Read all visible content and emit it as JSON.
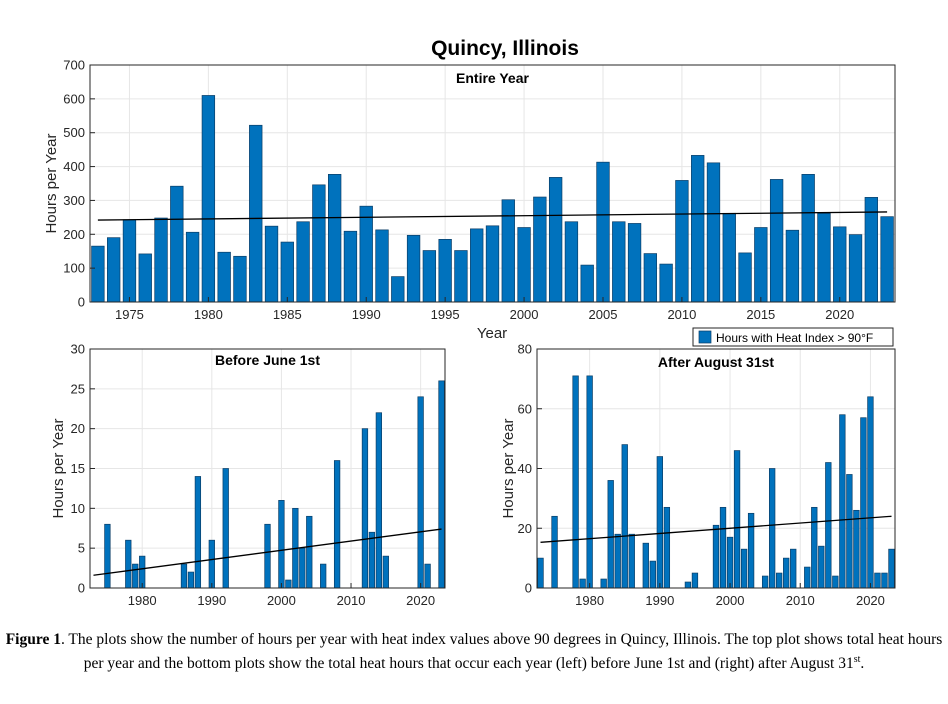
{
  "figure_title": "Quincy, Illinois",
  "caption": {
    "label": "Figure 1",
    "text_1": ". The plots show the number of hours per year with heat index values above 90 degrees in Quincy, Illinois. The top plot shows total heat hours per year and the bottom plots show the total heat hours that occur each year (left) before June 1st and (right) after August 31",
    "superscript": "st",
    "text_2": "."
  },
  "colors": {
    "bar": "#0072BD",
    "trend": "#000000",
    "grid": "#e6e6e6"
  },
  "chart_data": [
    {
      "type": "bar",
      "title": "Entire Year",
      "xlabel": "Year",
      "ylabel": "Hours per Year",
      "legend": "Hours with Heat Index > 90°F",
      "legend_position": "below-right",
      "grid": true,
      "xlim": [
        1972.5,
        2023.5
      ],
      "ylim": [
        0,
        700
      ],
      "xticks": [
        1975,
        1980,
        1985,
        1990,
        1995,
        2000,
        2005,
        2010,
        2015,
        2020
      ],
      "yticks": [
        0,
        100,
        200,
        300,
        400,
        500,
        600,
        700
      ],
      "x": [
        1973,
        1974,
        1975,
        1976,
        1977,
        1978,
        1979,
        1980,
        1981,
        1982,
        1983,
        1984,
        1985,
        1986,
        1987,
        1988,
        1989,
        1990,
        1991,
        1992,
        1993,
        1994,
        1995,
        1996,
        1997,
        1998,
        1999,
        2000,
        2001,
        2002,
        2003,
        2004,
        2005,
        2006,
        2007,
        2008,
        2009,
        2010,
        2011,
        2012,
        2013,
        2014,
        2015,
        2016,
        2017,
        2018,
        2019,
        2020,
        2021,
        2022,
        2023
      ],
      "values": [
        165,
        190,
        243,
        142,
        248,
        342,
        206,
        610,
        147,
        135,
        522,
        224,
        177,
        237,
        346,
        377,
        209,
        283,
        213,
        75,
        197,
        152,
        185,
        152,
        216,
        225,
        302,
        220,
        310,
        368,
        237,
        109,
        413,
        237,
        232,
        143,
        112,
        359,
        433,
        411,
        262,
        145,
        220,
        362,
        212,
        377,
        262,
        222,
        199,
        309,
        252
      ],
      "trend": {
        "x": [
          1973,
          2023
        ],
        "y": [
          242,
          266
        ]
      }
    },
    {
      "type": "bar",
      "title": "Before June 1st",
      "xlabel": "",
      "ylabel": "Hours per Year",
      "grid": true,
      "xlim": [
        1972.5,
        2023.5
      ],
      "ylim": [
        0,
        30
      ],
      "xticks": [
        1980,
        1990,
        2000,
        2010,
        2020
      ],
      "yticks": [
        0,
        5,
        10,
        15,
        20,
        25,
        30
      ],
      "x": [
        1973,
        1974,
        1975,
        1976,
        1977,
        1978,
        1979,
        1980,
        1981,
        1982,
        1983,
        1984,
        1985,
        1986,
        1987,
        1988,
        1989,
        1990,
        1991,
        1992,
        1993,
        1994,
        1995,
        1996,
        1997,
        1998,
        1999,
        2000,
        2001,
        2002,
        2003,
        2004,
        2005,
        2006,
        2007,
        2008,
        2009,
        2010,
        2011,
        2012,
        2013,
        2014,
        2015,
        2016,
        2017,
        2018,
        2019,
        2020,
        2021,
        2022,
        2023
      ],
      "values": [
        0,
        0,
        8,
        0,
        0,
        6,
        3,
        4,
        0,
        0,
        0,
        0,
        0,
        3,
        2,
        14,
        0,
        6,
        0,
        15,
        0,
        0,
        0,
        0,
        0,
        8,
        0,
        11,
        1,
        10,
        5,
        9,
        0,
        3,
        0,
        16,
        0,
        0,
        0,
        20,
        7,
        22,
        4,
        0,
        0,
        0,
        0,
        24,
        3,
        0,
        26
      ],
      "trend": {
        "x": [
          1973,
          2023
        ],
        "y": [
          1.6,
          7.4
        ]
      }
    },
    {
      "type": "bar",
      "title": "After August 31st",
      "xlabel": "",
      "ylabel": "Hours per Year",
      "grid": true,
      "xlim": [
        1972.5,
        2023.5
      ],
      "ylim": [
        0,
        80
      ],
      "xticks": [
        1980,
        1990,
        2000,
        2010,
        2020
      ],
      "yticks": [
        0,
        20,
        40,
        60,
        80
      ],
      "x": [
        1973,
        1974,
        1975,
        1976,
        1977,
        1978,
        1979,
        1980,
        1981,
        1982,
        1983,
        1984,
        1985,
        1986,
        1987,
        1988,
        1989,
        1990,
        1991,
        1992,
        1993,
        1994,
        1995,
        1996,
        1997,
        1998,
        1999,
        2000,
        2001,
        2002,
        2003,
        2004,
        2005,
        2006,
        2007,
        2008,
        2009,
        2010,
        2011,
        2012,
        2013,
        2014,
        2015,
        2016,
        2017,
        2018,
        2019,
        2020,
        2021,
        2022,
        2023
      ],
      "values": [
        10,
        0,
        24,
        0,
        0,
        71,
        3,
        71,
        0,
        3,
        36,
        18,
        48,
        18,
        0,
        15,
        9,
        44,
        27,
        0,
        0,
        2,
        5,
        0,
        0,
        21,
        27,
        17,
        46,
        13,
        25,
        0,
        4,
        40,
        5,
        10,
        13,
        0,
        7,
        27,
        14,
        42,
        4,
        58,
        38,
        26,
        57,
        64,
        5,
        5,
        13
      ],
      "trend": {
        "x": [
          1973,
          2023
        ],
        "y": [
          15.3,
          24
        ]
      }
    }
  ]
}
